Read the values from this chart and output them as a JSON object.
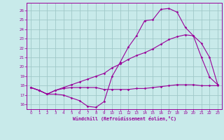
{
  "bg_color": "#c8eaea",
  "grid_color": "#a0c8c8",
  "line_color": "#990099",
  "title": "Windchill (Refroidissement éolien,°C)",
  "xlim": [
    -0.5,
    23.5
  ],
  "ylim": [
    15.5,
    26.8
  ],
  "yticks": [
    16,
    17,
    18,
    19,
    20,
    21,
    22,
    23,
    24,
    25,
    26
  ],
  "xticks": [
    0,
    1,
    2,
    3,
    4,
    5,
    6,
    7,
    8,
    9,
    10,
    11,
    12,
    13,
    14,
    15,
    16,
    17,
    18,
    19,
    20,
    21,
    22,
    23
  ],
  "series1_x": [
    0,
    1,
    2,
    3,
    4,
    5,
    6,
    7,
    8,
    9,
    10,
    11,
    12,
    13,
    14,
    15,
    16,
    17,
    18,
    19,
    20,
    21,
    22,
    23
  ],
  "series1_y": [
    17.8,
    17.5,
    17.1,
    17.1,
    17.0,
    16.7,
    16.4,
    15.8,
    15.7,
    16.3,
    19.0,
    20.5,
    22.1,
    23.3,
    24.9,
    25.0,
    26.1,
    26.2,
    25.8,
    24.2,
    23.3,
    21.0,
    18.9,
    18.1
  ],
  "series2_x": [
    0,
    1,
    2,
    3,
    4,
    5,
    6,
    7,
    8,
    9,
    10,
    11,
    12,
    13,
    14,
    15,
    16,
    17,
    18,
    19,
    20,
    21,
    22,
    23
  ],
  "series2_y": [
    17.8,
    17.5,
    17.1,
    17.5,
    17.8,
    18.1,
    18.4,
    18.7,
    19.0,
    19.3,
    19.9,
    20.3,
    20.8,
    21.2,
    21.5,
    21.9,
    22.4,
    22.9,
    23.2,
    23.4,
    23.3,
    22.5,
    21.0,
    18.1
  ],
  "series3_x": [
    0,
    1,
    2,
    3,
    4,
    5,
    6,
    7,
    8,
    9,
    10,
    11,
    12,
    13,
    14,
    15,
    16,
    17,
    18,
    19,
    20,
    21,
    22,
    23
  ],
  "series3_y": [
    17.8,
    17.5,
    17.1,
    17.5,
    17.7,
    17.8,
    17.8,
    17.8,
    17.8,
    17.6,
    17.6,
    17.6,
    17.6,
    17.7,
    17.7,
    17.8,
    17.9,
    18.0,
    18.1,
    18.1,
    18.1,
    18.0,
    18.0,
    18.0
  ]
}
